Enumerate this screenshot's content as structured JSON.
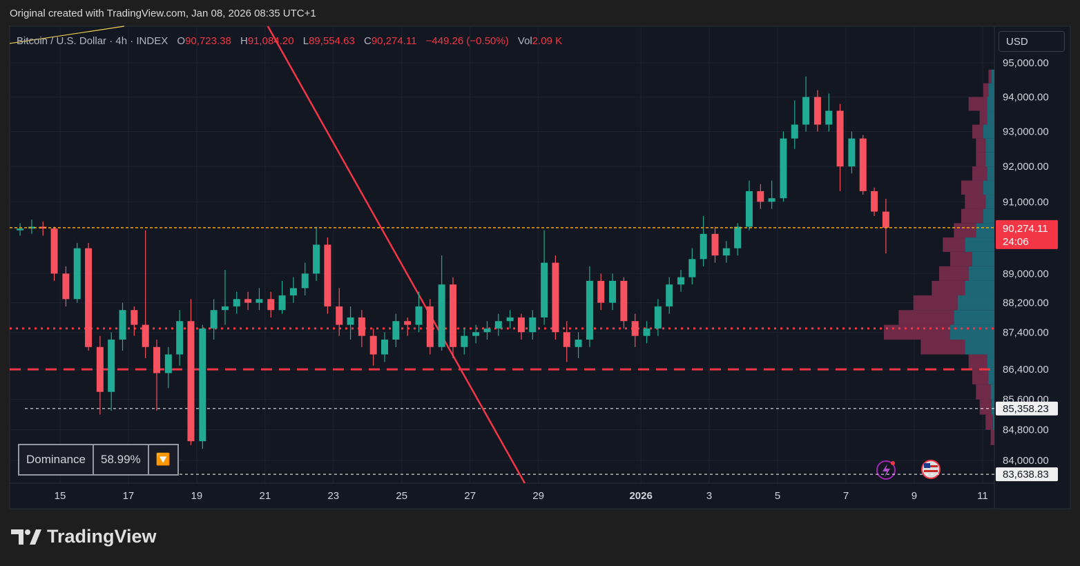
{
  "credit": "Original created with TradingView.com, Jan 08, 2026 08:35 UTC+1",
  "brand": "TradingView",
  "currency": "USD",
  "dominance": {
    "label": "Dominance",
    "value": "58.99%"
  },
  "chart_data": {
    "type": "candlestick",
    "log": true,
    "grid": true,
    "up_color": "#22ab94",
    "down_color": "#f7525f",
    "legend": {
      "symbol": "Bitcoin / U.S. Dollar · 4h · INDEX",
      "o": "O",
      "open": "90,723.38",
      "h": "H",
      "high": "91,084.20",
      "l": "L",
      "low": "89,554.63",
      "c": "C",
      "close": "90,274.11",
      "change": "−449.26 (−0.50%)",
      "vol": "Vol",
      "volume": "2.09 K"
    },
    "last_price_label": "90,274.11",
    "countdown": "24:06",
    "xlim": [
      -1.475,
      27.345
    ],
    "xticks": [
      {
        "value": 0,
        "label": "15"
      },
      {
        "value": 2,
        "label": "17"
      },
      {
        "value": 4,
        "label": "19"
      },
      {
        "value": 6,
        "label": "21"
      },
      {
        "value": 8,
        "label": "23"
      },
      {
        "value": 10,
        "label": "25"
      },
      {
        "value": 12,
        "label": "27"
      },
      {
        "value": 14,
        "label": "29"
      },
      {
        "value": 17,
        "label": "2026"
      },
      {
        "value": 19,
        "label": "3"
      },
      {
        "value": 21,
        "label": "5"
      },
      {
        "value": 23,
        "label": "7"
      },
      {
        "value": 25,
        "label": "9"
      },
      {
        "value": 27,
        "label": "11"
      }
    ],
    "ylim": [
      83410,
      96081
    ],
    "yticks": [
      {
        "value": 95000,
        "label": "95,000.00"
      },
      {
        "value": 94000,
        "label": "94,000.00"
      },
      {
        "value": 93000,
        "label": "93,000.00"
      },
      {
        "value": 92000,
        "label": "92,000.00"
      },
      {
        "value": 91000,
        "label": "91,000.00"
      },
      {
        "value": 89000,
        "label": "89,000.00"
      },
      {
        "value": 88200,
        "label": "88,200.00"
      },
      {
        "value": 87400,
        "label": "87,400.00"
      },
      {
        "value": 86400,
        "label": "86,400.00"
      },
      {
        "value": 85600,
        "label": "85,600.00"
      },
      {
        "value": 84800,
        "label": "84,800.00"
      },
      {
        "value": 84000,
        "label": "84,000.00"
      }
    ],
    "x": [
      -1.17,
      -0.83,
      -0.5,
      -0.17,
      0.17,
      0.5,
      0.83,
      1.17,
      1.5,
      1.83,
      2.17,
      2.5,
      2.83,
      3.17,
      3.5,
      3.83,
      4.17,
      4.5,
      4.83,
      5.17,
      5.5,
      5.83,
      6.17,
      6.5,
      6.83,
      7.17,
      7.5,
      7.83,
      8.17,
      8.5,
      8.83,
      9.17,
      9.5,
      9.83,
      10.17,
      10.5,
      10.83,
      11.17,
      11.5,
      11.83,
      12.17,
      12.5,
      12.83,
      13.17,
      13.5,
      13.83,
      14.17,
      14.5,
      14.83,
      15.17,
      15.5,
      15.83,
      16.17,
      16.5,
      16.83,
      17.17,
      17.5,
      17.83,
      18.17,
      18.5,
      18.83,
      19.17,
      19.5,
      19.83,
      20.17,
      20.5,
      20.83,
      21.17,
      21.5,
      21.83,
      22.17,
      22.5,
      22.83,
      23.17,
      23.5,
      23.83,
      24.17
    ],
    "open": [
      90200,
      90250,
      90300,
      90250,
      89000,
      88300,
      89700,
      87000,
      85800,
      87200,
      88000,
      87600,
      87000,
      86300,
      86800,
      87700,
      84500,
      87500,
      88000,
      88100,
      88300,
      88200,
      88300,
      88000,
      88400,
      88600,
      89000,
      89800,
      88100,
      87600,
      87800,
      87300,
      86800,
      87200,
      87700,
      87600,
      88100,
      87000,
      88700,
      87000,
      87300,
      87400,
      87500,
      87700,
      87800,
      87400,
      87800,
      89300,
      87400,
      87000,
      87200,
      88800,
      88200,
      88800,
      87700,
      87300,
      87500,
      88100,
      88700,
      88900,
      89400,
      90100,
      89500,
      89700,
      90300,
      91300,
      91000,
      91100,
      92800,
      93200,
      94000,
      93200,
      93600,
      92000,
      92800,
      91300,
      90723.38
    ],
    "high": [
      90400,
      90500,
      90450,
      90300,
      89200,
      89850,
      89850,
      87300,
      87400,
      88200,
      88100,
      90200,
      87200,
      87000,
      88000,
      88300,
      87600,
      88300,
      89100,
      88500,
      88500,
      88600,
      88500,
      88800,
      88900,
      89300,
      90300,
      90000,
      88600,
      88100,
      88000,
      87500,
      87400,
      87900,
      87800,
      88500,
      88300,
      89500,
      88900,
      87500,
      87600,
      87700,
      87900,
      88000,
      87900,
      88000,
      90200,
      89500,
      87700,
      87400,
      89200,
      89000,
      89000,
      88900,
      87900,
      87700,
      88300,
      88900,
      89100,
      89700,
      90600,
      90300,
      89900,
      90400,
      91600,
      91500,
      91600,
      93000,
      93900,
      94600,
      94200,
      94100,
      93800,
      93000,
      92900,
      91400,
      91084.2
    ],
    "low": [
      90050,
      90100,
      90050,
      88800,
      88100,
      88200,
      86900,
      85200,
      85300,
      86900,
      87300,
      86700,
      85300,
      85900,
      86500,
      84400,
      84300,
      87200,
      87600,
      87900,
      88000,
      88000,
      87800,
      87900,
      88200,
      88400,
      88800,
      87900,
      87300,
      87200,
      87000,
      86500,
      86600,
      87000,
      87300,
      87400,
      86800,
      86900,
      86700,
      86800,
      87100,
      87200,
      87300,
      87500,
      87200,
      87200,
      87600,
      87200,
      86600,
      86700,
      87000,
      88000,
      88000,
      87500,
      87000,
      87100,
      87300,
      87900,
      88500,
      88700,
      89200,
      89300,
      89300,
      89500,
      90200,
      90800,
      90800,
      91000,
      92500,
      93000,
      93000,
      93000,
      91300,
      91800,
      91200,
      90600,
      89554.63
    ],
    "close": [
      90250,
      90300,
      90250,
      89000,
      88300,
      89700,
      87000,
      85800,
      87200,
      88000,
      87600,
      87000,
      86300,
      86800,
      87700,
      84500,
      87500,
      88000,
      88100,
      88300,
      88200,
      88300,
      88000,
      88400,
      88600,
      89000,
      89800,
      88100,
      87600,
      87800,
      87300,
      86800,
      87200,
      87700,
      87600,
      88100,
      87000,
      88700,
      87000,
      87300,
      87400,
      87500,
      87700,
      87800,
      87400,
      87800,
      89300,
      87400,
      87000,
      87200,
      88800,
      88200,
      88800,
      87700,
      87300,
      87500,
      88100,
      88700,
      88900,
      89400,
      90100,
      89500,
      89700,
      90300,
      91300,
      91000,
      91100,
      92800,
      93200,
      94000,
      93200,
      93600,
      92000,
      92800,
      91300,
      90723.38,
      90274.11
    ],
    "levels": [
      {
        "value": 87500,
        "style": "dotted",
        "color": "#f23645"
      },
      {
        "value": 86400,
        "style": "dashed",
        "color": "#f23645"
      },
      {
        "value": 85358.23,
        "label": "85,358.23",
        "style": "thin",
        "color": "#ffffff"
      },
      {
        "value": 83638.83,
        "label": "83,638.83",
        "style": "thin",
        "color": "#ffffff"
      }
    ],
    "trendlines": [
      {
        "x": [
          6.08,
          13.6
        ],
        "y": [
          96081,
          83410
        ],
        "color": "#f23645"
      },
      {
        "x": [
          -1.475,
          1.88
        ],
        "y": [
          95570,
          96081
        ],
        "color": "#f0d050"
      }
    ],
    "volume_profile": {
      "up_color": "#1f6f80",
      "down_color": "#7a2c4d",
      "prices": [
        84600,
        85000,
        85400,
        85800,
        86200,
        86600,
        87000,
        87400,
        87800,
        88200,
        88600,
        89000,
        89400,
        89800,
        90200,
        90600,
        91000,
        91400,
        91800,
        92200,
        92600,
        93000,
        93400,
        93800,
        94200,
        94600
      ],
      "up": [
        0,
        2,
        4,
        5,
        8,
        10,
        40,
        60,
        55,
        50,
        40,
        35,
        30,
        40,
        25,
        15,
        12,
        15,
        10,
        12,
        12,
        15,
        10,
        10,
        8,
        4
      ],
      "down": [
        5,
        10,
        16,
        20,
        22,
        25,
        60,
        90,
        75,
        60,
        45,
        40,
        30,
        30,
        30,
        30,
        28,
        30,
        20,
        13,
        13,
        15,
        10,
        25,
        7,
        4
      ]
    }
  }
}
